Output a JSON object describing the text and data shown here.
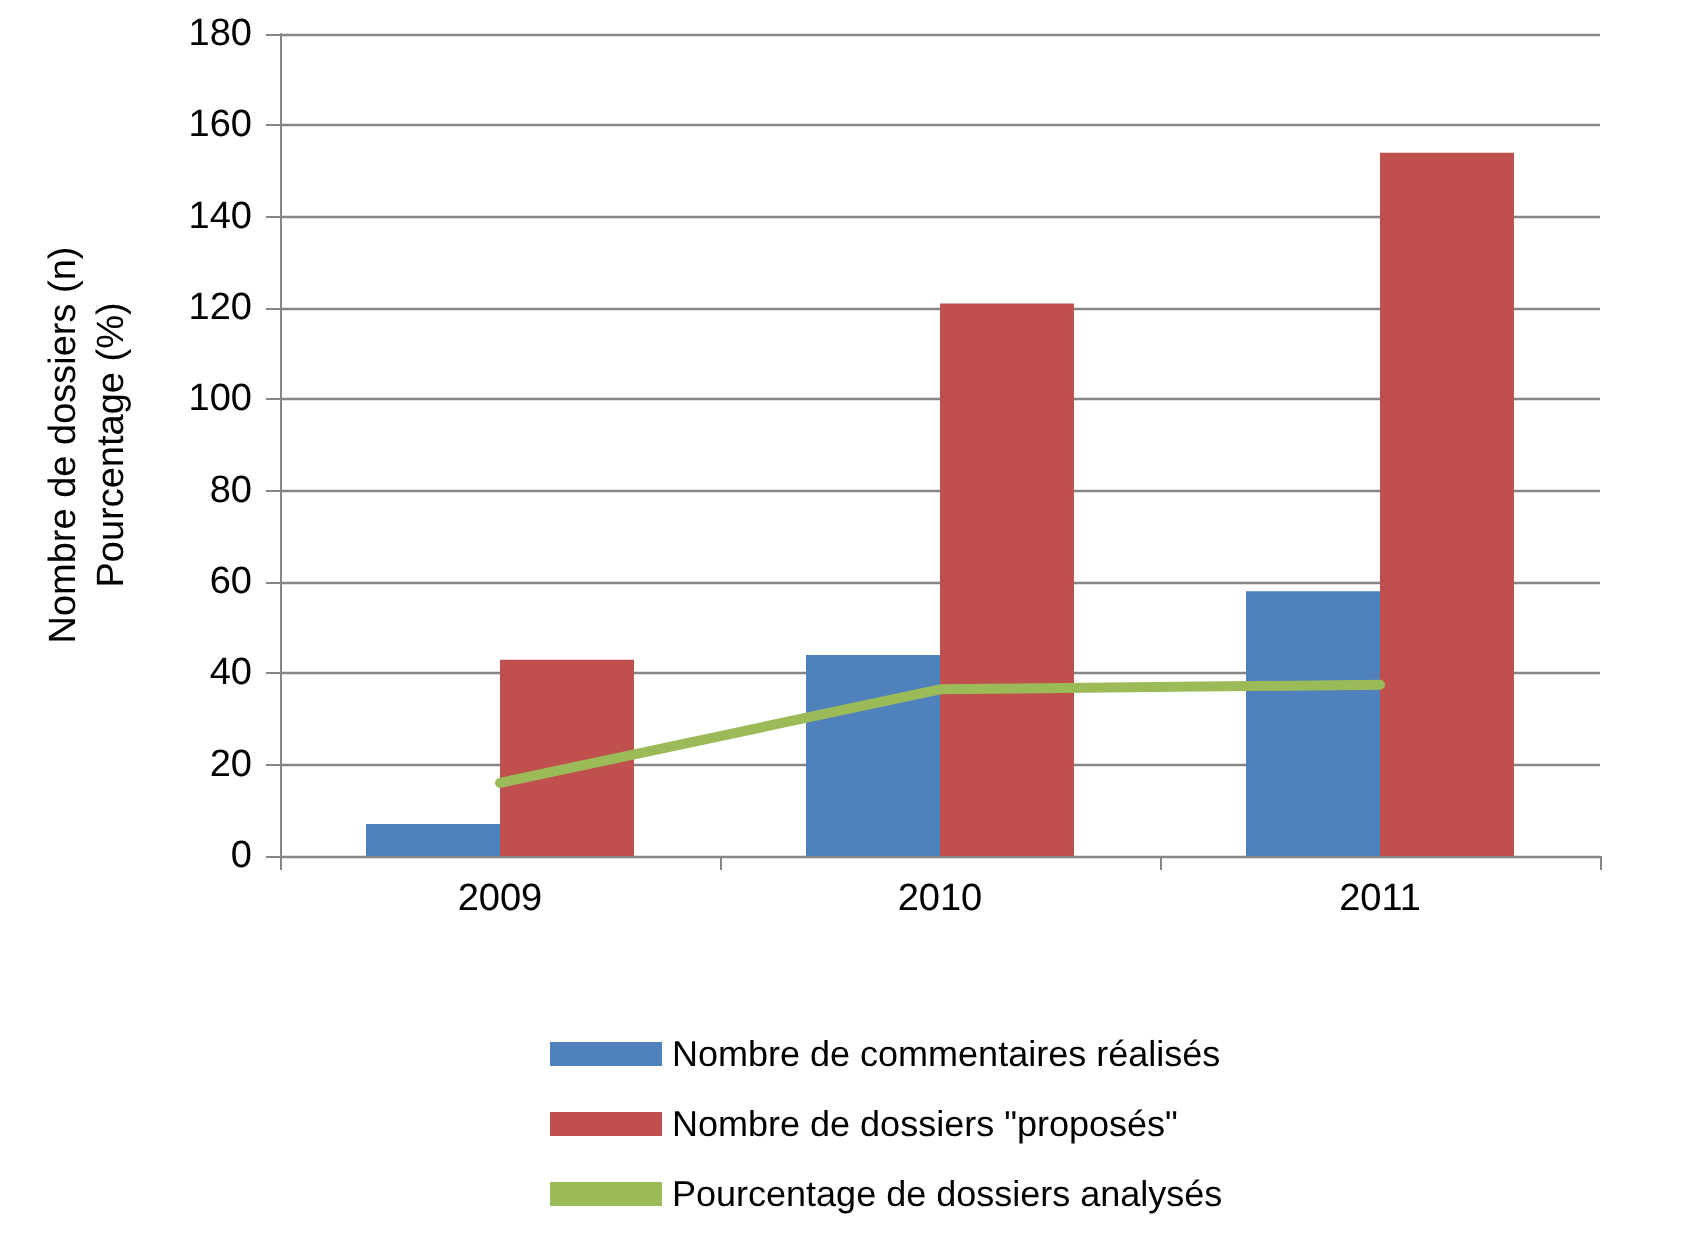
{
  "chart_data": {
    "type": "bar",
    "ylabel": "Nombre de dossiers (n)\nPourcentage (%)",
    "categories": [
      "2009",
      "2010",
      "2011"
    ],
    "series": [
      {
        "name": "Nombre de commentaires réalisés",
        "color": "#4f81bd",
        "values": [
          7,
          44,
          58
        ]
      },
      {
        "name": "Nombre de dossiers \"proposés\"",
        "color": "#c0504d",
        "values": [
          43,
          121,
          154
        ]
      },
      {
        "name": "Pourcentage de dossiers analysés",
        "type": "line",
        "color": "#9bbb59",
        "values": [
          16,
          36.5,
          37.5
        ]
      }
    ],
    "ylim": [
      0,
      180
    ],
    "yticks": [
      0,
      20,
      40,
      60,
      80,
      100,
      120,
      140,
      160,
      180
    ],
    "grid": "y",
    "legend": "bottom",
    "marker": "none"
  }
}
